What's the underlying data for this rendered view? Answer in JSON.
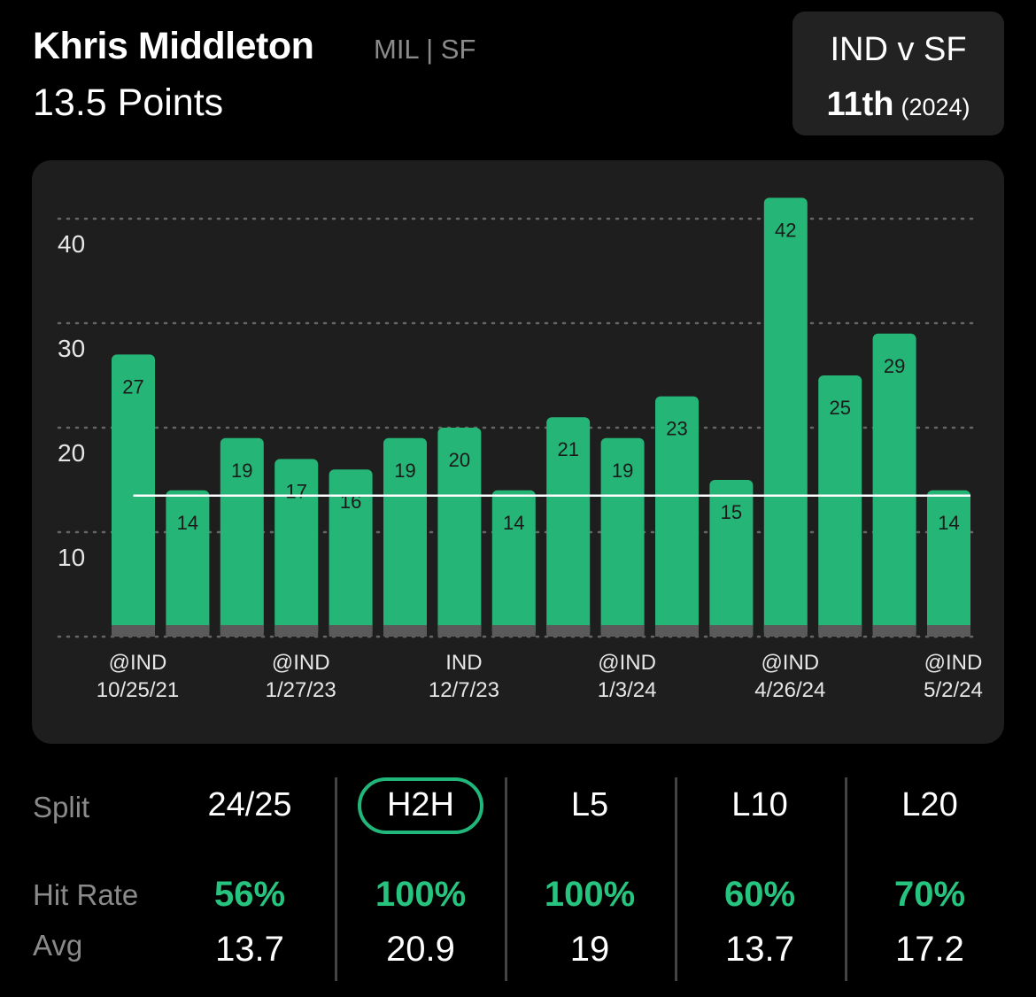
{
  "header": {
    "player_name": "Khris Middleton",
    "player_meta": "MIL | SF",
    "prop_line": "13.5 Points"
  },
  "matchup": {
    "title": "IND v SF",
    "rank": "11th",
    "season": "(2024)"
  },
  "colors": {
    "bar": "#25b577",
    "bar_base": "#5a5a5a",
    "hit_text": "#26c47f",
    "card_bg": "#1e1e1e",
    "line": "#ffffff"
  },
  "chart_data": {
    "type": "bar",
    "y_ticks": [
      "10",
      "20",
      "30",
      "40"
    ],
    "ylim": [
      0,
      44
    ],
    "threshold": 13.5,
    "values": [
      27,
      14,
      19,
      17,
      16,
      19,
      20,
      14,
      21,
      19,
      23,
      15,
      42,
      25,
      29,
      14
    ],
    "x_label_groups": [
      {
        "opp": "@IND",
        "date": "10/25/21"
      },
      {
        "opp": "@IND",
        "date": "1/27/23"
      },
      {
        "opp": "IND",
        "date": "12/7/23"
      },
      {
        "opp": "@IND",
        "date": "1/3/24"
      },
      {
        "opp": "@IND",
        "date": "4/26/24"
      },
      {
        "opp": "@IND",
        "date": "5/2/24"
      }
    ]
  },
  "splits": {
    "labels": {
      "split": "Split",
      "hit_rate": "Hit Rate",
      "avg": "Avg"
    },
    "columns": [
      {
        "name": "24/25",
        "hit_rate": "56%",
        "avg": "13.7"
      },
      {
        "name": "H2H",
        "hit_rate": "100%",
        "avg": "20.9"
      },
      {
        "name": "L5",
        "hit_rate": "100%",
        "avg": "19"
      },
      {
        "name": "L10",
        "hit_rate": "60%",
        "avg": "13.7"
      },
      {
        "name": "L20",
        "hit_rate": "70%",
        "avg": "17.2"
      }
    ]
  }
}
